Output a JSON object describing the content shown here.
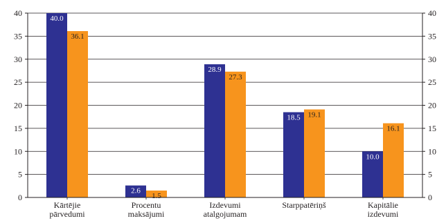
{
  "chart_data": {
    "type": "bar",
    "categories": [
      [
        "Kārtējie",
        "pārvedumi"
      ],
      [
        "Procentu",
        "maksājumi"
      ],
      [
        "Izdevumi",
        "atalgojumam"
      ],
      [
        "Starppatēriņš"
      ],
      [
        "Kapitālie",
        "izdevumi"
      ]
    ],
    "series": [
      {
        "values": [
          40.0,
          2.6,
          28.9,
          18.5,
          10.0
        ],
        "color": "#2e3192",
        "label_color": "#ffffff"
      },
      {
        "values": [
          36.1,
          1.5,
          27.3,
          19.1,
          16.1
        ],
        "color": "#f7941d",
        "label_color": "#231f20"
      }
    ],
    "value_labels": [
      [
        "40.0",
        "2.6",
        "28.9",
        "18.5",
        "10.0"
      ],
      [
        "36.1",
        "1.5",
        "27.3",
        "19.1",
        "16.1"
      ]
    ],
    "ylim": [
      0,
      40
    ],
    "yticks": [
      0,
      5,
      10,
      15,
      20,
      25,
      30,
      35,
      40
    ],
    "y_axis_right": true,
    "grid": true,
    "legend": "none"
  }
}
